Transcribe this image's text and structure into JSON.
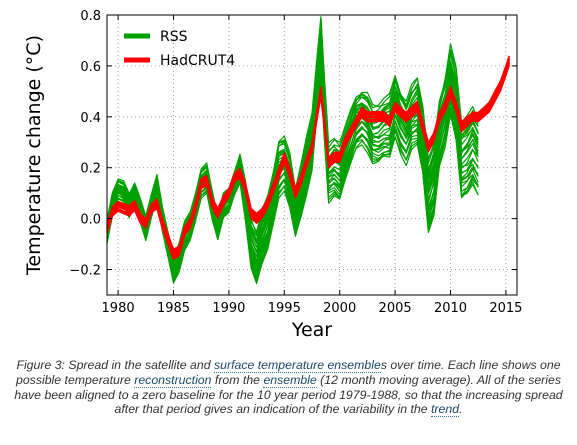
{
  "chart_data": {
    "type": "line",
    "xlabel": "Year",
    "ylabel": "Temperature change (°C)",
    "xlim": [
      1979,
      2016
    ],
    "ylim": [
      -0.3,
      0.8
    ],
    "xticks": [
      1980,
      1985,
      1990,
      1995,
      2000,
      2005,
      2010,
      2015
    ],
    "yticks": [
      -0.2,
      0.0,
      0.2,
      0.4,
      0.6,
      0.8
    ],
    "ytick_labels": [
      "−0.2",
      "0.0",
      "0.2",
      "0.4",
      "0.6",
      "0.8"
    ],
    "grid": "dotted",
    "legend_position": "top-left",
    "series": [
      {
        "name": "RSS",
        "color": "#00a000",
        "x": [
          1979.0,
          1979.5,
          1980.0,
          1980.5,
          1981.0,
          1981.5,
          1982.0,
          1982.5,
          1983.0,
          1983.5,
          1984.0,
          1984.5,
          1985.0,
          1985.5,
          1986.0,
          1986.5,
          1987.0,
          1987.5,
          1988.0,
          1988.5,
          1989.0,
          1989.5,
          1990.0,
          1990.5,
          1991.0,
          1991.5,
          1992.0,
          1992.5,
          1993.0,
          1993.5,
          1994.0,
          1994.5,
          1995.0,
          1995.5,
          1996.0,
          1996.5,
          1997.0,
          1997.5,
          1998.0,
          1998.3,
          1998.6,
          1999.0,
          1999.5,
          2000.0,
          2000.5,
          2001.0,
          2001.5,
          2002.0,
          2002.5,
          2003.0,
          2003.5,
          2004.0,
          2004.5,
          2005.0,
          2005.5,
          2006.0,
          2006.5,
          2007.0,
          2007.5,
          2008.0,
          2008.5,
          2009.0,
          2009.5,
          2010.0,
          2010.5,
          2011.0,
          2011.5,
          2012.0,
          2012.5
        ],
        "y": [
          -0.05,
          0.06,
          0.11,
          0.1,
          0.05,
          0.09,
          0.03,
          -0.04,
          0.05,
          0.13,
          0.0,
          -0.1,
          -0.2,
          -0.16,
          -0.07,
          -0.03,
          0.05,
          0.14,
          0.16,
          0.05,
          -0.04,
          0.05,
          0.07,
          0.14,
          0.2,
          0.07,
          -0.1,
          -0.16,
          -0.08,
          -0.02,
          0.08,
          0.2,
          0.22,
          0.15,
          0.02,
          0.1,
          0.2,
          0.3,
          0.55,
          0.68,
          0.45,
          0.18,
          0.2,
          0.18,
          0.25,
          0.32,
          0.38,
          0.4,
          0.38,
          0.33,
          0.33,
          0.35,
          0.36,
          0.44,
          0.38,
          0.34,
          0.4,
          0.42,
          0.3,
          0.08,
          0.15,
          0.34,
          0.42,
          0.55,
          0.45,
          0.22,
          0.24,
          0.28,
          0.24
        ],
        "spread": [
          0.05,
          0.05,
          0.05,
          0.05,
          0.05,
          0.05,
          0.05,
          0.05,
          0.05,
          0.05,
          0.05,
          0.05,
          0.06,
          0.06,
          0.06,
          0.06,
          0.06,
          0.06,
          0.06,
          0.06,
          0.05,
          0.05,
          0.05,
          0.05,
          0.06,
          0.08,
          0.1,
          0.11,
          0.11,
          0.11,
          0.11,
          0.12,
          0.11,
          0.11,
          0.1,
          0.11,
          0.12,
          0.12,
          0.12,
          0.13,
          0.13,
          0.12,
          0.12,
          0.12,
          0.11,
          0.11,
          0.11,
          0.11,
          0.12,
          0.12,
          0.12,
          0.12,
          0.13,
          0.13,
          0.13,
          0.13,
          0.13,
          0.14,
          0.14,
          0.15,
          0.15,
          0.14,
          0.14,
          0.14,
          0.15,
          0.16,
          0.16,
          0.16,
          0.16
        ]
      },
      {
        "name": "HadCRUT4",
        "color": "#ff0000",
        "x": [
          1979.0,
          1979.5,
          1980.0,
          1980.5,
          1981.0,
          1981.5,
          1982.0,
          1982.5,
          1983.0,
          1983.5,
          1984.0,
          1984.5,
          1985.0,
          1985.5,
          1986.0,
          1986.5,
          1987.0,
          1987.5,
          1988.0,
          1988.5,
          1989.0,
          1989.5,
          1990.0,
          1990.5,
          1991.0,
          1991.5,
          1992.0,
          1992.5,
          1993.0,
          1993.5,
          1994.0,
          1994.5,
          1995.0,
          1995.5,
          1996.0,
          1996.5,
          1997.0,
          1997.5,
          1998.0,
          1998.3,
          1998.6,
          1999.0,
          1999.5,
          2000.0,
          2000.5,
          2001.0,
          2001.5,
          2002.0,
          2002.5,
          2003.0,
          2003.5,
          2004.0,
          2004.5,
          2005.0,
          2005.5,
          2006.0,
          2006.5,
          2007.0,
          2007.5,
          2008.0,
          2008.5,
          2009.0,
          2009.5,
          2010.0,
          2010.5,
          2011.0,
          2011.5,
          2012.0,
          2012.5,
          2013.0,
          2013.5,
          2014.0,
          2014.5,
          2015.0,
          2015.3
        ],
        "y": [
          -0.04,
          0.03,
          0.05,
          0.04,
          0.03,
          0.05,
          0.0,
          -0.02,
          0.04,
          0.06,
          -0.02,
          -0.08,
          -0.14,
          -0.13,
          -0.05,
          -0.02,
          0.05,
          0.14,
          0.15,
          0.06,
          0.02,
          0.07,
          0.1,
          0.16,
          0.18,
          0.12,
          0.02,
          0.0,
          0.02,
          0.06,
          0.12,
          0.18,
          0.24,
          0.18,
          0.1,
          0.15,
          0.22,
          0.28,
          0.42,
          0.5,
          0.38,
          0.22,
          0.24,
          0.24,
          0.3,
          0.34,
          0.38,
          0.42,
          0.4,
          0.4,
          0.4,
          0.4,
          0.38,
          0.44,
          0.42,
          0.4,
          0.42,
          0.44,
          0.36,
          0.28,
          0.32,
          0.4,
          0.44,
          0.5,
          0.44,
          0.36,
          0.38,
          0.4,
          0.4,
          0.42,
          0.44,
          0.48,
          0.52,
          0.58,
          0.62
        ],
        "spread": [
          0.02,
          0.02,
          0.02,
          0.02,
          0.02,
          0.02,
          0.02,
          0.02,
          0.02,
          0.02,
          0.02,
          0.02,
          0.02,
          0.02,
          0.02,
          0.02,
          0.02,
          0.02,
          0.02,
          0.02,
          0.02,
          0.02,
          0.02,
          0.02,
          0.02,
          0.02,
          0.02,
          0.02,
          0.02,
          0.02,
          0.02,
          0.02,
          0.02,
          0.02,
          0.02,
          0.02,
          0.02,
          0.02,
          0.02,
          0.02,
          0.02,
          0.02,
          0.02,
          0.02,
          0.02,
          0.02,
          0.02,
          0.02,
          0.02,
          0.02,
          0.02,
          0.02,
          0.02,
          0.02,
          0.02,
          0.02,
          0.02,
          0.02,
          0.02,
          0.02,
          0.02,
          0.02,
          0.02,
          0.02,
          0.02,
          0.02,
          0.02,
          0.02,
          0.02,
          0.02,
          0.02,
          0.02,
          0.02,
          0.02,
          0.02
        ]
      }
    ]
  },
  "caption": {
    "t1": "Figure 3: Spread in the satellite and ",
    "l1": "surface temperature ensemble",
    "t2": "s over time. Each line shows one possible temperature ",
    "l2": "reconstruction",
    "t3": " from the ",
    "l3": "ensemble",
    "t4": " (12 month moving average). All of the series have been aligned to a zero baseline for the 10 year period 1979-1988, so that the increasing spread after that period gives an indication of the variability in the ",
    "l4": "trend",
    "t5": "."
  }
}
